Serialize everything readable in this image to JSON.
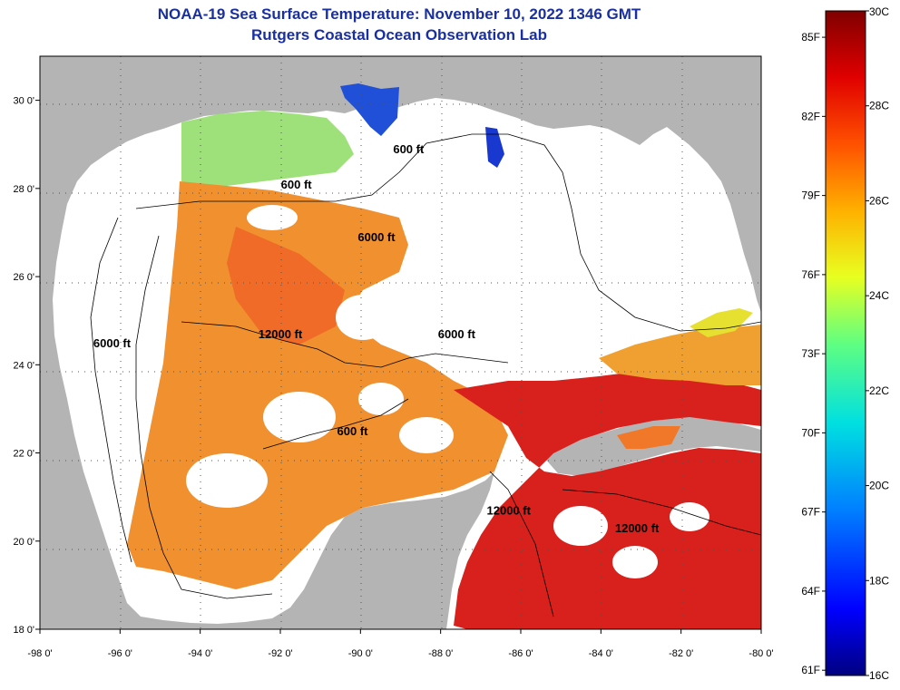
{
  "header": {
    "title": "NOAA-19 Sea Surface Temperature:  November 10, 2022 1346 GMT",
    "subtitle": "Rutgers Coastal Ocean Observation Lab"
  },
  "axes": {
    "lon_ticks": [
      "-98 0'",
      "-96 0'",
      "-94 0'",
      "-92 0'",
      "-90 0'",
      "-88 0'",
      "-86 0'",
      "-84 0'",
      "-82 0'",
      "-80 0'"
    ],
    "lat_ticks": [
      "30 0'",
      "28 0'",
      "26 0'",
      "24 0'",
      "22 0'",
      "20 0'",
      "18 0'"
    ],
    "lon_range": [
      -98,
      -80
    ],
    "lat_range": [
      18,
      31
    ]
  },
  "contour_labels": [
    {
      "text": "600 ft",
      "lon": -91.6,
      "lat": 28.0
    },
    {
      "text": "600 ft",
      "lon": -88.8,
      "lat": 28.8
    },
    {
      "text": "6000 ft",
      "lon": -89.6,
      "lat": 26.8
    },
    {
      "text": "12000 ft",
      "lon": -92.0,
      "lat": 24.6
    },
    {
      "text": "6000 ft",
      "lon": -96.2,
      "lat": 24.4
    },
    {
      "text": "6000 ft",
      "lon": -87.6,
      "lat": 24.6
    },
    {
      "text": "600 ft",
      "lon": -90.2,
      "lat": 22.4
    },
    {
      "text": "12000 ft",
      "lon": -86.3,
      "lat": 20.6
    },
    {
      "text": "12000 ft",
      "lon": -83.1,
      "lat": 20.2
    }
  ],
  "colorbar": {
    "fahrenheit_labels": [
      "85F",
      "82F",
      "79F",
      "76F",
      "73F",
      "70F",
      "67F",
      "64F",
      "61F"
    ],
    "celsius_labels": [
      "30C",
      "28C",
      "26C",
      "24C",
      "22C",
      "20C",
      "18C",
      "16C"
    ],
    "range_c": [
      16,
      30
    ]
  },
  "colors": {
    "land": "#b4b4b4",
    "no_data": "#ffffff",
    "title": "#1a2fa0"
  }
}
